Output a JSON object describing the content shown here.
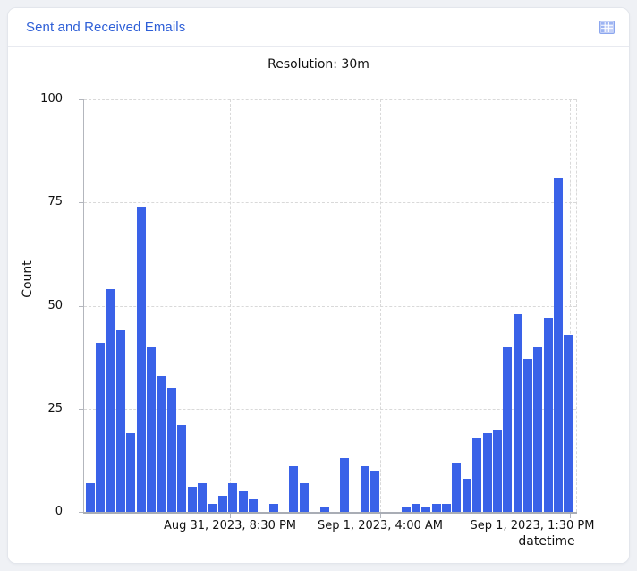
{
  "header": {
    "title": "Sent and Received Emails",
    "icon": "data-table-icon"
  },
  "subtitle": "Resolution: 30m",
  "chart_data": {
    "type": "bar",
    "title": "Sent and Received Emails",
    "subtitle": "Resolution: 30m",
    "xlabel": "datetime",
    "ylabel": "Count",
    "ylim": [
      0,
      100
    ],
    "yticks": [
      0,
      25,
      50,
      75,
      100
    ],
    "x_tick_labels": [
      "Aug 31, 2023, 8:30 PM",
      "Sep 1, 2023, 4:00 AM",
      "Sep 1, 2023, 1:30 PM"
    ],
    "resolution_minutes": 30,
    "grid": "dashed",
    "legend": "none",
    "bar_color": "#3a62e8",
    "title_color": "#2e5fd7",
    "values": [
      7,
      41,
      54,
      44,
      19,
      74,
      40,
      33,
      30,
      21,
      6,
      7,
      2,
      4,
      7,
      5,
      3,
      0,
      2,
      0,
      11,
      7,
      0,
      1,
      0,
      13,
      0,
      11,
      10,
      0,
      0,
      1,
      2,
      1,
      2,
      2,
      12,
      8,
      18,
      19,
      20,
      40,
      48,
      37,
      40,
      47,
      81,
      43
    ]
  }
}
